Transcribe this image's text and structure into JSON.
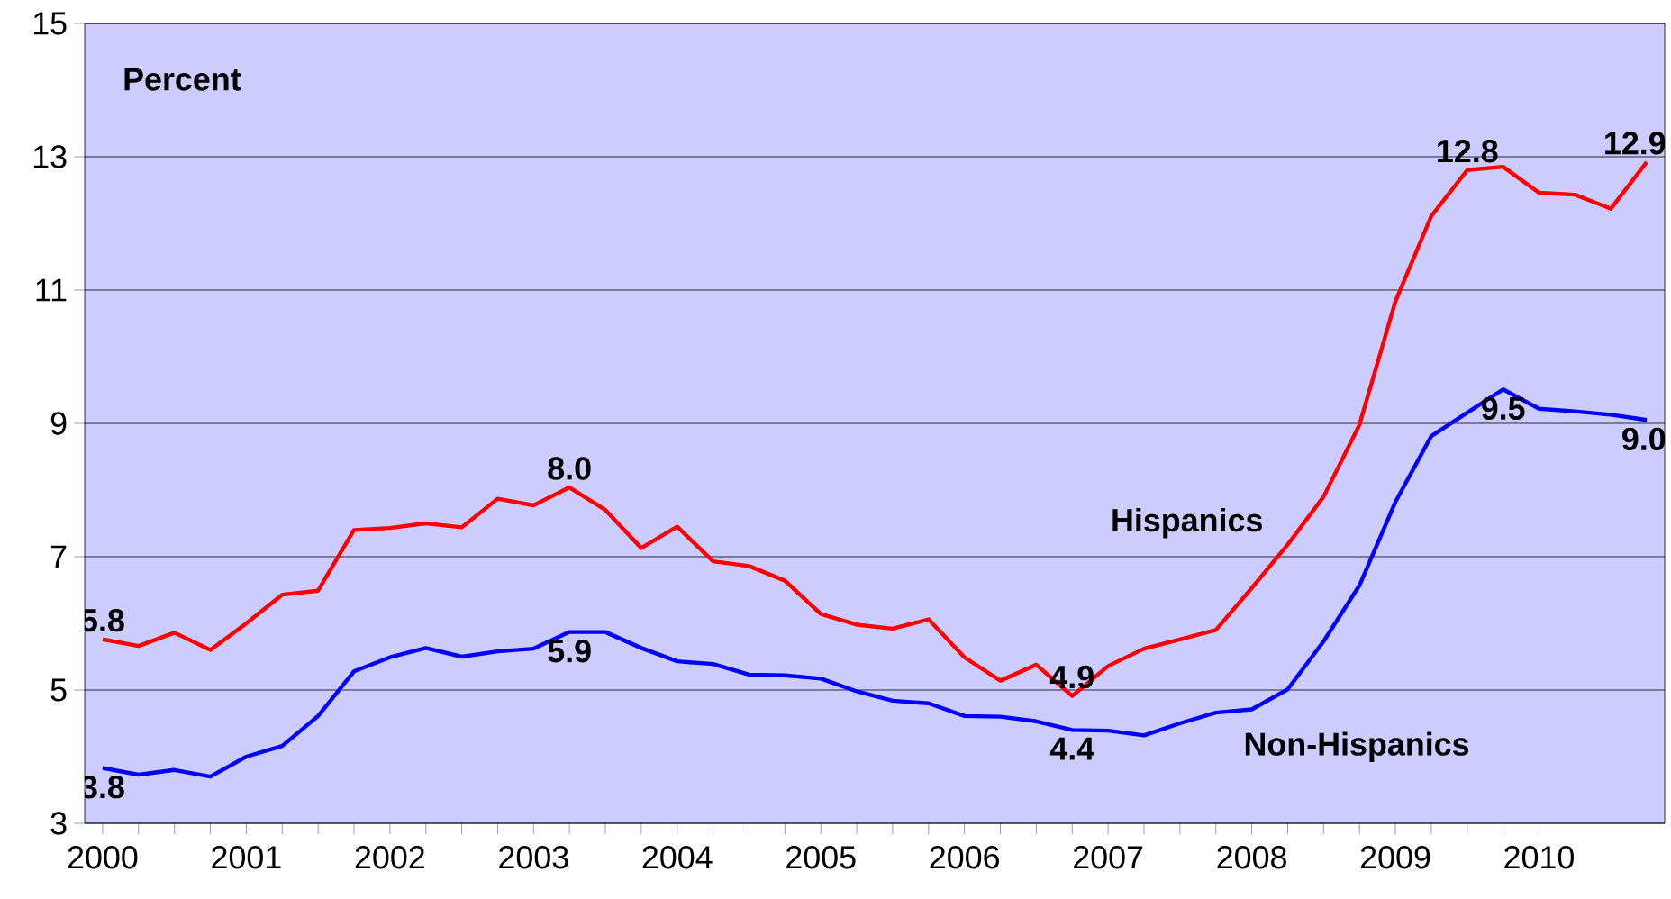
{
  "chart_data": {
    "type": "line",
    "x": [
      2000,
      2000.25,
      2000.5,
      2000.75,
      2001,
      2001.25,
      2001.5,
      2001.75,
      2002,
      2002.25,
      2002.5,
      2002.75,
      2003,
      2003.25,
      2003.5,
      2003.75,
      2004,
      2004.25,
      2004.5,
      2004.75,
      2005,
      2005.25,
      2005.5,
      2005.75,
      2006,
      2006.25,
      2006.5,
      2006.75,
      2007,
      2007.25,
      2007.5,
      2007.75,
      2008,
      2008.25,
      2008.5,
      2008.75,
      2009,
      2009.25,
      2009.5,
      2009.75,
      2010,
      2010.25,
      2010.5,
      2010.75
    ],
    "series": [
      {
        "name": "Hispanics",
        "color": "#ff0000",
        "values": [
          5.76,
          5.66,
          5.86,
          5.6,
          6.0,
          6.43,
          6.49,
          7.4,
          7.43,
          7.5,
          7.44,
          7.87,
          7.77,
          8.04,
          7.7,
          7.13,
          7.45,
          6.93,
          6.86,
          6.64,
          6.14,
          5.98,
          5.92,
          6.06,
          5.49,
          5.14,
          5.38,
          4.91,
          5.36,
          5.62,
          5.76,
          5.9,
          6.53,
          7.18,
          7.9,
          8.98,
          10.83,
          12.11,
          12.8,
          12.85,
          12.46,
          12.43,
          12.22,
          12.92
        ],
        "value_labels": [
          "5.8",
          null,
          null,
          null,
          null,
          null,
          null,
          null,
          null,
          null,
          null,
          null,
          null,
          "8.0",
          null,
          null,
          null,
          null,
          null,
          null,
          null,
          null,
          null,
          null,
          null,
          null,
          null,
          "4.9",
          null,
          null,
          null,
          null,
          null,
          null,
          null,
          null,
          null,
          null,
          "12.8",
          null,
          null,
          null,
          null,
          "12.9"
        ]
      },
      {
        "name": "Non-Hispanics",
        "color": "#0000ff",
        "values": [
          3.83,
          3.73,
          3.8,
          3.7,
          4.0,
          4.16,
          4.61,
          5.28,
          5.49,
          5.63,
          5.5,
          5.58,
          5.62,
          5.87,
          5.87,
          5.63,
          5.43,
          5.39,
          5.23,
          5.22,
          5.17,
          4.98,
          4.84,
          4.8,
          4.61,
          4.6,
          4.53,
          4.4,
          4.39,
          4.32,
          4.5,
          4.66,
          4.71,
          5.01,
          5.73,
          6.57,
          7.82,
          8.81,
          9.16,
          9.51,
          9.22,
          9.18,
          9.13,
          9.05
        ],
        "value_labels": [
          "3.8",
          null,
          null,
          null,
          null,
          null,
          null,
          null,
          null,
          null,
          null,
          null,
          null,
          "5.9",
          null,
          null,
          null,
          null,
          null,
          null,
          null,
          null,
          null,
          null,
          null,
          null,
          null,
          "4.4",
          null,
          null,
          null,
          null,
          null,
          null,
          null,
          null,
          null,
          null,
          null,
          "9.5",
          null,
          null,
          null,
          "9.0"
        ]
      }
    ],
    "xlim": [
      1999.875,
      2010.875
    ],
    "xticks": [
      2000,
      2001,
      2002,
      2003,
      2004,
      2005,
      2006,
      2007,
      2008,
      2009,
      2010
    ],
    "ylim": [
      3,
      15
    ],
    "yticks": [
      3,
      5,
      7,
      9,
      11,
      13,
      15
    ],
    "grid": "y",
    "legend": false,
    "marker": "none",
    "line_style": "solid",
    "annotations": [
      "Percent"
    ]
  }
}
